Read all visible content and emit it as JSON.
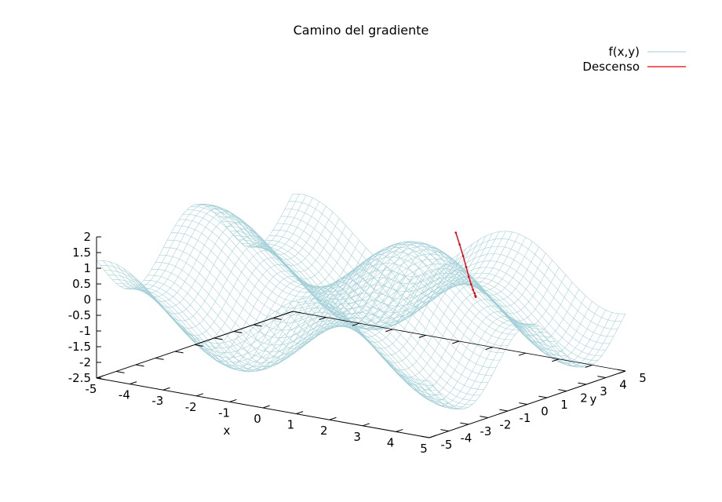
{
  "chart_data": {
    "type": "surface3d",
    "title": "Camino del gradiente",
    "xlabel": "x",
    "ylabel": "y",
    "zlabel": "",
    "xlim": [
      -5,
      5
    ],
    "ylim": [
      -5,
      5
    ],
    "zlim": [
      -2.5,
      2
    ],
    "x_ticks": [
      -5,
      -4,
      -3,
      -2,
      -1,
      0,
      1,
      2,
      3,
      4,
      5
    ],
    "y_ticks": [
      -5,
      -4,
      -3,
      -2,
      -1,
      0,
      1,
      2,
      3,
      4,
      5
    ],
    "z_ticks": [
      2,
      1.5,
      1,
      0.5,
      0,
      -0.5,
      -1,
      -1.5,
      -2,
      -2.5
    ],
    "legend_position": "top-right",
    "series": [
      {
        "name": "f(x,y)",
        "kind": "mesh",
        "color": "#a0ced6",
        "formula": "sin(x)+cos(y)",
        "grid_size": 50
      },
      {
        "name": "Descenso",
        "kind": "path",
        "color": "#e8000b",
        "x": [
          0.55,
          0.74,
          0.93,
          1.1,
          1.24,
          1.36,
          1.45,
          1.52,
          1.56,
          1.58
        ],
        "y": [
          3.9,
          3.77,
          3.63,
          3.5,
          3.39,
          3.31,
          3.25,
          3.21,
          3.18,
          3.17
        ],
        "z": [
          1.3,
          0.99,
          0.68,
          0.39,
          0.13,
          -0.07,
          -0.21,
          -0.3,
          -0.37,
          -0.4
        ]
      }
    ]
  }
}
